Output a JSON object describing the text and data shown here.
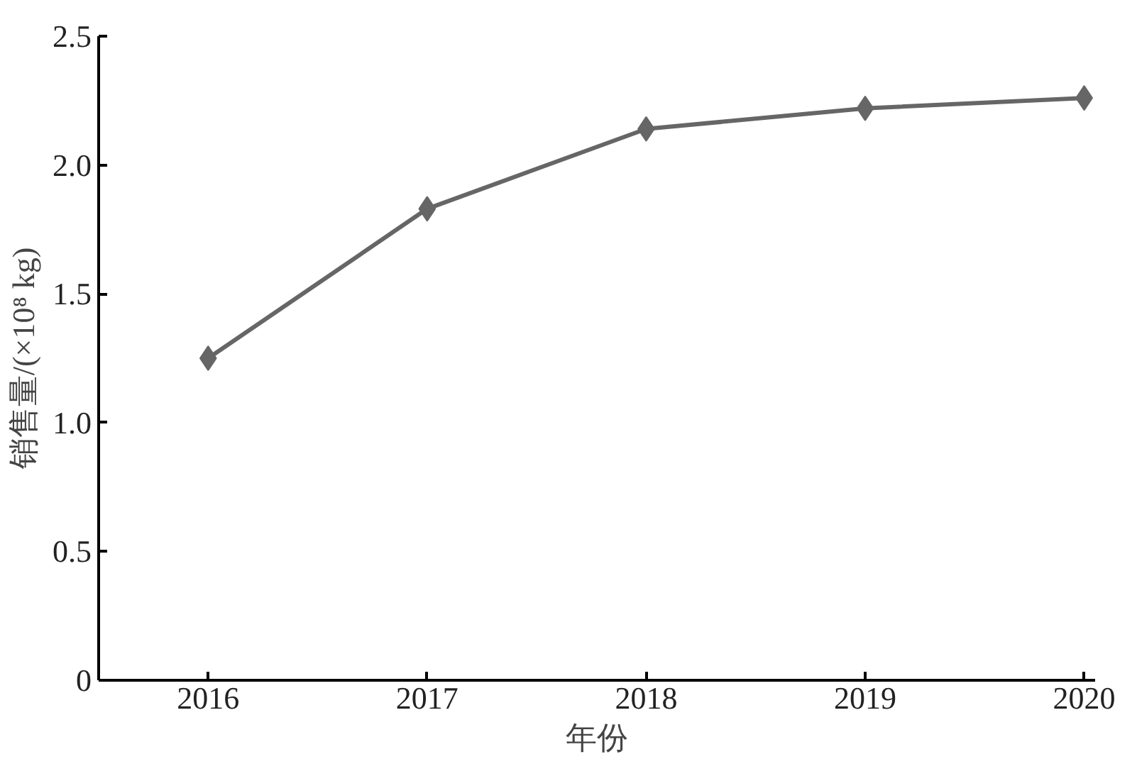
{
  "chart_data": {
    "type": "line",
    "xlabel": "年份",
    "ylabel": "销售量/(×10⁸ kg)",
    "categories": [
      "2016",
      "2017",
      "2018",
      "2019",
      "2020"
    ],
    "series": [
      {
        "color": "#666666",
        "values": [
          1.25,
          1.83,
          2.14,
          2.22,
          2.26
        ]
      }
    ],
    "ylim": [
      0,
      2.5
    ],
    "yticks": [
      0,
      {
        "value": 0.5,
        "label": "0.5"
      },
      {
        "value": 1.0,
        "label": "1.0"
      },
      {
        "value": 1.5,
        "label": "1.5"
      },
      {
        "value": 2.0,
        "label": "2.0"
      },
      {
        "value": 2.5,
        "label": "2.5"
      }
    ],
    "marker": "diamond",
    "line_style": "solid",
    "grid": false
  }
}
